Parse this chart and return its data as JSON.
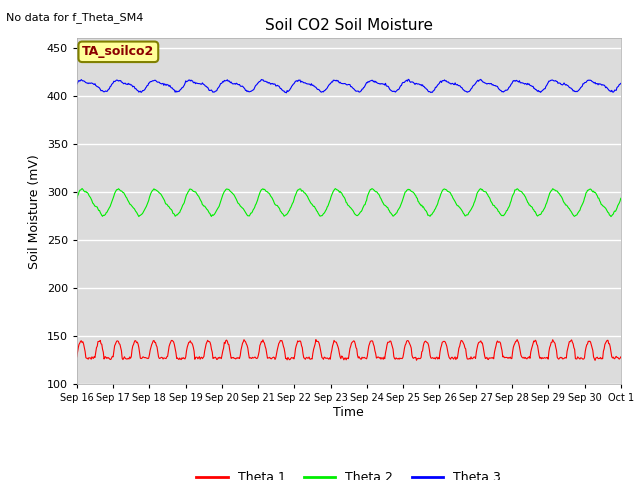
{
  "title": "Soil CO2 Soil Moisture",
  "ylabel": "Soil Moisture (mV)",
  "xlabel": "Time",
  "top_left_text": "No data for f_Theta_SM4",
  "annotation_box_text": "TA_soilco2",
  "ylim": [
    100,
    460
  ],
  "yticks": [
    100,
    150,
    200,
    250,
    300,
    350,
    400,
    450
  ],
  "x_tick_labels": [
    "Sep 16",
    "Sep 17",
    "Sep 18",
    "Sep 19",
    "Sep 20",
    "Sep 21",
    "Sep 22",
    "Sep 23",
    "Sep 24",
    "Sep 25",
    "Sep 26",
    "Sep 27",
    "Sep 28",
    "Sep 29",
    "Sep 30",
    "Oct 1"
  ],
  "theta1_base": 127,
  "theta1_amp": 18,
  "theta2_base": 288,
  "theta2_amp": 13,
  "theta3_base": 411,
  "theta3_amp": 5,
  "theta1_color": "#FF0000",
  "theta2_color": "#00EE00",
  "theta3_color": "#0000FF",
  "background_color": "#DCDCDC",
  "grid_color": "#FFFFFF",
  "legend_labels": [
    "Theta 1",
    "Theta 2",
    "Theta 3"
  ]
}
